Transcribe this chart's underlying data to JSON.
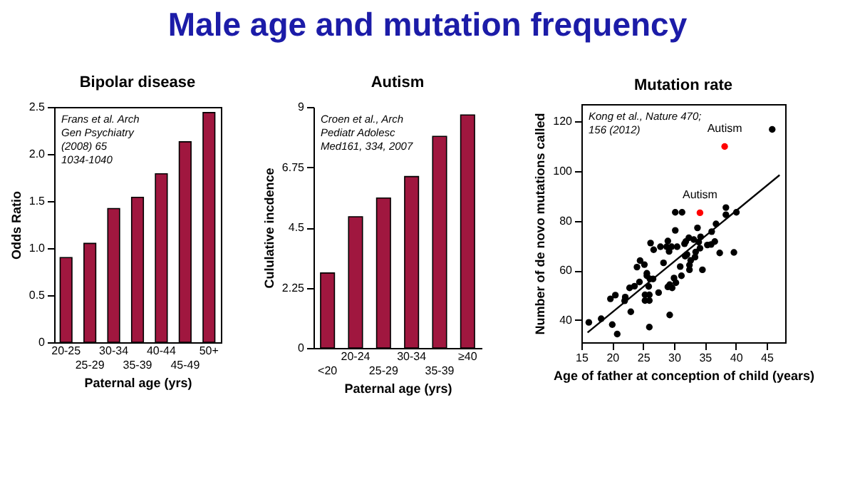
{
  "chart_data": [
    {
      "type": "other",
      "title": "Male age and mutation frequency"
    },
    {
      "type": "bar",
      "title": "Bipolar disease",
      "xlabel": "Paternal age (yrs)",
      "ylabel": "Odds Ratio",
      "categories": [
        "20-25",
        "25-29",
        "30-34",
        "35-39",
        "40-44",
        "45-49",
        "50+"
      ],
      "values": [
        0.9,
        1.05,
        1.42,
        1.54,
        1.79,
        2.13,
        2.44
      ],
      "color": "#a0173f",
      "ylim": [
        0,
        2.5
      ],
      "yticks": [
        0,
        0.5,
        {
          "value": 1,
          "label": "1.0"
        },
        1.5,
        {
          "value": 2,
          "label": "2.0"
        },
        2.5
      ],
      "grid": false,
      "annotations": [
        "Frans et al.  Arch\nGen Psychiatry\n(2008)  65\n1034-1040"
      ]
    },
    {
      "type": "bar",
      "title": "Autism",
      "xlabel": "Paternal age (yrs)",
      "ylabel": "Cululative incdence",
      "categories": [
        "<20",
        "20-24",
        "25-29",
        "30-34",
        "35-39",
        "≥40"
      ],
      "values": [
        2.8,
        4.9,
        5.6,
        6.4,
        7.9,
        8.7
      ],
      "color": "#a0173f",
      "ylim": [
        0,
        9
      ],
      "yticks": [
        0,
        2.25,
        4.5,
        6.75,
        9
      ],
      "grid": false,
      "annotations": [
        "Croen et al., Arch\nPediatr Adolesc\nMed161, 334, 2007"
      ]
    },
    {
      "type": "scatter",
      "title": "Mutation rate",
      "xlabel": "Age of father at conception of child (years)",
      "ylabel": "Number of de novo mutations called",
      "xlim": [
        15,
        48
      ],
      "xticks": [
        15,
        20,
        25,
        30,
        35,
        40,
        45
      ],
      "ylim": [
        31,
        127
      ],
      "yticks": [
        40,
        60,
        80,
        100,
        120
      ],
      "grid": false,
      "annotations": [
        "Kong et al., Nature 470;\n156 (2012)",
        {
          "text": "Autism",
          "x": 34.2,
          "y": 83.2
        },
        {
          "text": "Autism",
          "x": 38.2,
          "y": 109.9
        }
      ],
      "series": [
        {
          "type": "scatter",
          "color": "#000000",
          "x": [
            16.2,
            18.2,
            19.7,
            20.5,
            20,
            20.8,
            22.1,
            22,
            22.8,
            23,
            23.6,
            24,
            24.4,
            24.5,
            25.2,
            25.6,
            25.6,
            25.3,
            25.3,
            26,
            26,
            26,
            25.9,
            26.1,
            26.2,
            26.7,
            26.6,
            27.5,
            27.8,
            28.3,
            28.8,
            29,
            29.2,
            29.3,
            29,
            29.3,
            29.7,
            29.6,
            30.2,
            30.2,
            30,
            30.3,
            30.5,
            31,
            31.2,
            31.3,
            31.7,
            31.8,
            31.9,
            32.1,
            32.4,
            32.5,
            32.5,
            32.7,
            33.2,
            33.4,
            33.5,
            33.8,
            34,
            34.3,
            34.6,
            34.2,
            35.4,
            36,
            36.1,
            36.6,
            36.8,
            37.4,
            38.4,
            38.4,
            39.7,
            40.1,
            45.9
          ],
          "values": [
            39,
            40.5,
            48.5,
            50,
            38.1,
            34.3,
            49.2,
            47.7,
            52.9,
            43.3,
            53.6,
            61.3,
            55.3,
            63.9,
            62.3,
            57.8,
            58.8,
            50.1,
            47.8,
            50.1,
            47.8,
            37.1,
            53.5,
            56.5,
            71,
            68.3,
            56.5,
            51,
            69.5,
            63,
            69.5,
            71.8,
            67.6,
            42,
            53.3,
            54.2,
            52.9,
            69.5,
            83.4,
            76.1,
            56.9,
            55,
            69.5,
            61.5,
            57.8,
            83.4,
            70.7,
            65.7,
            71.6,
            66.4,
            73.1,
            60.2,
            62.1,
            64,
            72.4,
            65.3,
            67.4,
            77.1,
            71.4,
            73.5,
            60.2,
            68.9,
            70.2,
            70.4,
            75.6,
            71.6,
            78.7,
            67,
            85.3,
            82.4,
            67.2,
            83.4,
            116.8
          ]
        },
        {
          "type": "scatter",
          "color": "#ff0000",
          "x": [
            34.2,
            38.2
          ],
          "values": [
            83.2,
            109.9
          ]
        },
        {
          "type": "line",
          "color": "#000000",
          "x": [
            16,
            47.1
          ],
          "values": [
            34.9,
            98.4
          ]
        }
      ]
    }
  ]
}
